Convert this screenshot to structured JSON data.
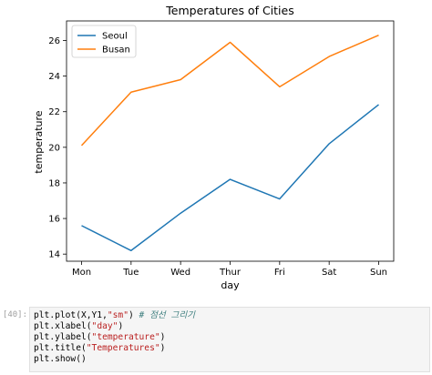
{
  "chart_data": {
    "type": "line",
    "title": "Temperatures of Cities",
    "xlabel": "day",
    "ylabel": "temperature",
    "categories": [
      "Mon",
      "Tue",
      "Wed",
      "Thur",
      "Fri",
      "Sat",
      "Sun"
    ],
    "ylim": [
      13.6,
      27.1
    ],
    "yticks": [
      14,
      16,
      18,
      20,
      22,
      24,
      26
    ],
    "series": [
      {
        "name": "Seoul",
        "color": "#1f77b4",
        "values": [
          15.6,
          14.2,
          16.3,
          18.2,
          17.1,
          20.2,
          22.4
        ]
      },
      {
        "name": "Busan",
        "color": "#ff7f0e",
        "values": [
          20.1,
          23.1,
          23.8,
          25.9,
          23.4,
          25.1,
          26.3
        ]
      }
    ],
    "grid": false,
    "legend_position": "top-left"
  },
  "code_cell": {
    "prompt": "[40]:",
    "lines": [
      [
        {
          "t": "plt.plot(X,Y1,",
          "c": "plain"
        },
        {
          "t": "\"sm\"",
          "c": "str"
        },
        {
          "t": ") ",
          "c": "plain"
        },
        {
          "t": "# 점선 그리기",
          "c": "comment"
        }
      ],
      [
        {
          "t": "plt.xlabel(",
          "c": "plain"
        },
        {
          "t": "\"day\"",
          "c": "str"
        },
        {
          "t": ")",
          "c": "plain"
        }
      ],
      [
        {
          "t": "plt.ylabel(",
          "c": "plain"
        },
        {
          "t": "\"temperature\"",
          "c": "str"
        },
        {
          "t": ")",
          "c": "plain"
        }
      ],
      [
        {
          "t": "plt.title(",
          "c": "plain"
        },
        {
          "t": "\"Temperatures\"",
          "c": "str"
        },
        {
          "t": ")",
          "c": "plain"
        }
      ],
      [
        {
          "t": "plt.show()",
          "c": "plain"
        }
      ]
    ]
  }
}
